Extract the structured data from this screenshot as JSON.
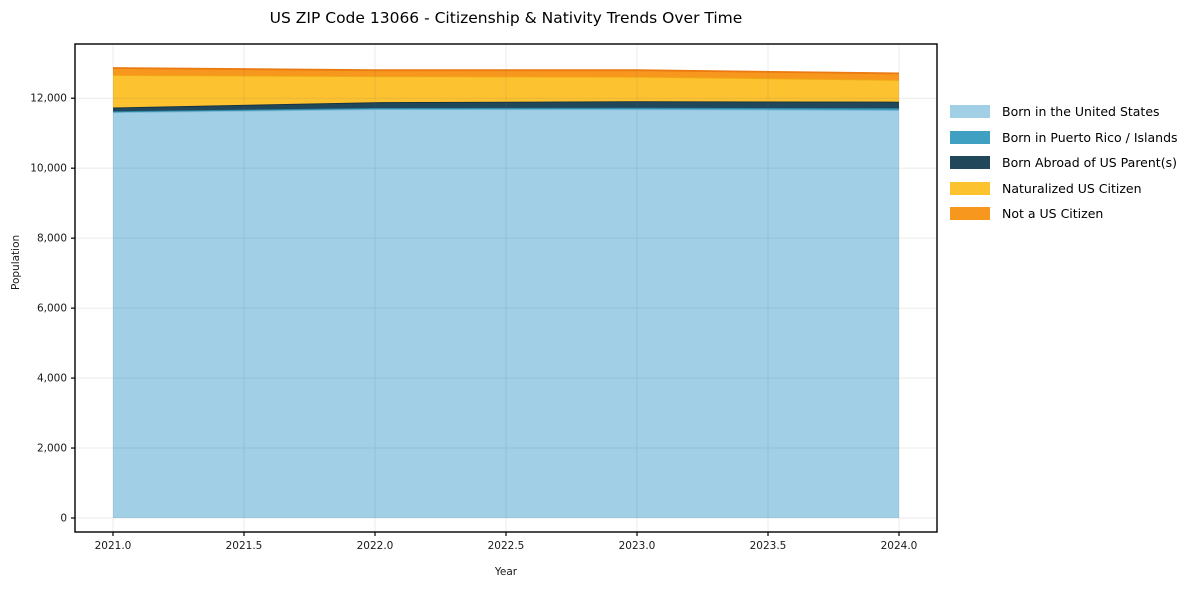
{
  "chart_data": {
    "type": "area",
    "stacked": true,
    "title": "US ZIP Code 13066 - Citizenship & Nativity Trends Over Time",
    "xlabel": "Year",
    "ylabel": "Population",
    "x": [
      2021,
      2022,
      2023,
      2024
    ],
    "series": [
      {
        "name": "Born in the United States",
        "values": [
          11600,
          11685,
          11685,
          11660
        ],
        "color": "#A0CFE6",
        "edge": "#7EB8D6"
      },
      {
        "name": "Born in Puerto Rico / Islands",
        "values": [
          25,
          35,
          45,
          55
        ],
        "color": "#3FA0C1",
        "edge": "#2E86A3"
      },
      {
        "name": "Born Abroad of US Parent(s)",
        "values": [
          110,
          165,
          185,
          185
        ],
        "color": "#20475A",
        "edge": "#16323F"
      },
      {
        "name": "Naturalized US Citizen",
        "values": [
          930,
          745,
          700,
          620
        ],
        "color": "#FDC230",
        "edge": "#F0A912"
      },
      {
        "name": "Not a US Citizen",
        "values": [
          200,
          170,
          185,
          190
        ],
        "color": "#F8971D",
        "edge": "#EA7A11"
      }
    ],
    "totals": [
      12865,
      12800,
      12800,
      12710
    ],
    "xticks": {
      "values": [
        2021,
        2021.5,
        2022,
        2022.5,
        2023,
        2023.5,
        2024
      ],
      "labels": [
        "2021.0",
        "2021.5",
        "2022.0",
        "2022.5",
        "2023.0",
        "2023.5",
        "2024.0"
      ]
    },
    "yticks": {
      "values": [
        0,
        2000,
        4000,
        6000,
        8000,
        10000,
        12000
      ],
      "labels": [
        "0",
        "2,000",
        "4,000",
        "6,000",
        "8,000",
        "10,000",
        "12,000"
      ]
    },
    "xlim": [
      2020.855,
      2024.145
    ],
    "ylim": [
      -400,
      13550
    ],
    "grid": true,
    "legend_position": "right",
    "colors": {
      "axis": "#000000",
      "tick_label": "#1a1a1a",
      "grid": "rgba(110,110,110,0.14)"
    }
  }
}
